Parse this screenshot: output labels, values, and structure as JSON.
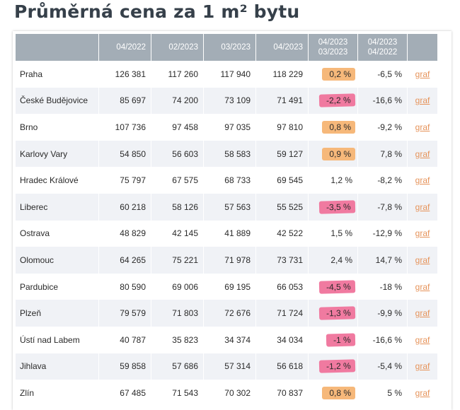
{
  "title": "Průměrná cena za 1 m² bytu",
  "table": {
    "headers": [
      "",
      "04/2022",
      "02/2023",
      "03/2023",
      "04/2023",
      "04/2023\n03/2023",
      "04/2023\n04/2022",
      ""
    ],
    "header_lines": {
      "h5a": "04/2023",
      "h5b": "03/2023",
      "h6a": "04/2023",
      "h6b": "04/2022"
    },
    "highlight_colors": {
      "positive": "#f6b87a",
      "negative": "#f07aa0"
    },
    "rows": [
      {
        "city": "Praha",
        "v1": "126 381",
        "v2": "117 260",
        "v3": "117 940",
        "v4": "118 229",
        "mom": "0,2 %",
        "mark": "pos",
        "yoy": "-6,5 %",
        "link": "graf"
      },
      {
        "city": "České Budějovice",
        "v1": "85 697",
        "v2": "74 200",
        "v3": "73 109",
        "v4": "71 491",
        "mom": "-2,2 %",
        "mark": "neg",
        "yoy": "-16,6 %",
        "link": "graf"
      },
      {
        "city": "Brno",
        "v1": "107 736",
        "v2": "97 458",
        "v3": "97 035",
        "v4": "97 810",
        "mom": "0,8 %",
        "mark": "pos",
        "yoy": "-9,2 %",
        "link": "graf"
      },
      {
        "city": "Karlovy Vary",
        "v1": "54 850",
        "v2": "56 603",
        "v3": "58 583",
        "v4": "59 127",
        "mom": "0,9 %",
        "mark": "pos",
        "yoy": "7,8 %",
        "link": "graf"
      },
      {
        "city": "Hradec Králové",
        "v1": "75 797",
        "v2": "67 575",
        "v3": "68 733",
        "v4": "69 545",
        "mom": "1,2 %",
        "mark": "none",
        "yoy": "-8,2 %",
        "link": "graf"
      },
      {
        "city": "Liberec",
        "v1": "60 218",
        "v2": "58 126",
        "v3": "57 563",
        "v4": "55 525",
        "mom": "-3,5 %",
        "mark": "neg",
        "yoy": "-7,8 %",
        "link": "graf"
      },
      {
        "city": "Ostrava",
        "v1": "48 829",
        "v2": "42 145",
        "v3": "41 889",
        "v4": "42 522",
        "mom": "1,5 %",
        "mark": "none",
        "yoy": "-12,9 %",
        "link": "graf"
      },
      {
        "city": "Olomouc",
        "v1": "64 265",
        "v2": "75 221",
        "v3": "71 978",
        "v4": "73 731",
        "mom": "2,4 %",
        "mark": "none",
        "yoy": "14,7 %",
        "link": "graf"
      },
      {
        "city": "Pardubice",
        "v1": "80 590",
        "v2": "69 006",
        "v3": "69 195",
        "v4": "66 053",
        "mom": "-4,5 %",
        "mark": "neg",
        "yoy": "-18 %",
        "link": "graf"
      },
      {
        "city": "Plzeň",
        "v1": "79 579",
        "v2": "71 803",
        "v3": "72 676",
        "v4": "71 724",
        "mom": "-1,3 %",
        "mark": "neg",
        "yoy": "-9,9 %",
        "link": "graf"
      },
      {
        "city": "Ústí nad Labem",
        "v1": "40 787",
        "v2": "35 823",
        "v3": "34 374",
        "v4": "34 034",
        "mom": "-1 %",
        "mark": "neg",
        "yoy": "-16,6 %",
        "link": "graf"
      },
      {
        "city": "Jihlava",
        "v1": "59 858",
        "v2": "57 686",
        "v3": "57 314",
        "v4": "56 618",
        "mom": "-1,2 %",
        "mark": "neg",
        "yoy": "-5,4 %",
        "link": "graf"
      },
      {
        "city": "Zlín",
        "v1": "67 485",
        "v2": "71 543",
        "v3": "70 302",
        "v4": "70 837",
        "mom": "0,8 %",
        "mark": "pos",
        "yoy": "5 %",
        "link": "graf"
      }
    ]
  }
}
